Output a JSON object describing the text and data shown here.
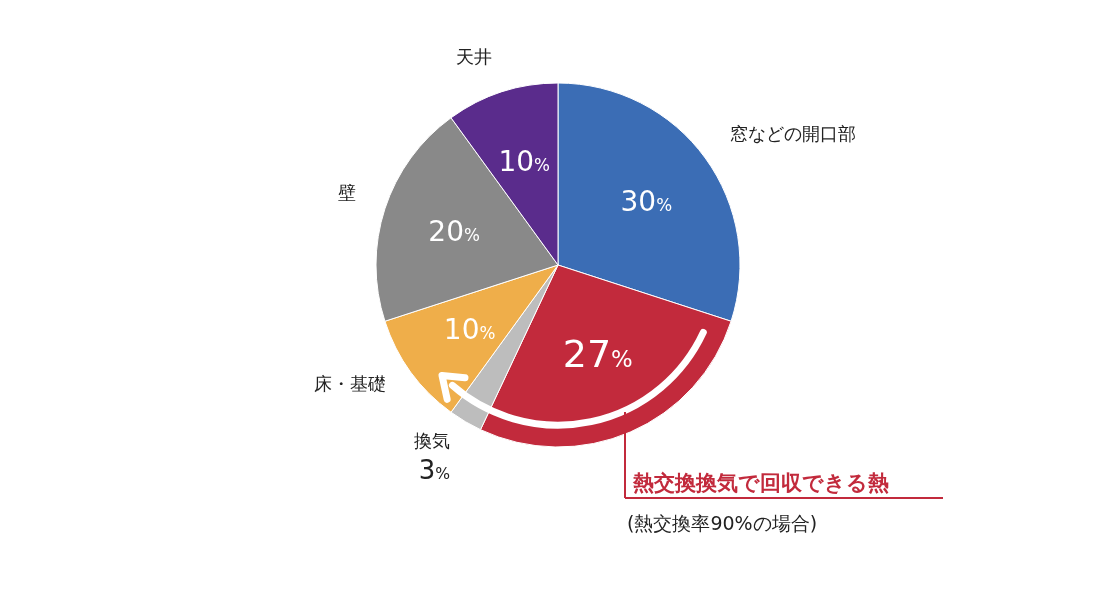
{
  "chart_data": {
    "type": "pie",
    "categories": [
      "窓などの開口部",
      "熱交換換気で回収できる熱",
      "換気",
      "床・基礎",
      "壁",
      "天井"
    ],
    "values": [
      30,
      27,
      3,
      10,
      20,
      10
    ],
    "colors": [
      "#3b6db5",
      "#c22a3c",
      "#bdbdbd",
      "#efae4a",
      "#898989",
      "#5a2c8c"
    ],
    "value_labels": [
      "30%",
      "27%",
      "3%",
      "10%",
      "20%",
      "10%"
    ],
    "annotations": [
      "(熱交換率90%の場合)"
    ]
  }
}
